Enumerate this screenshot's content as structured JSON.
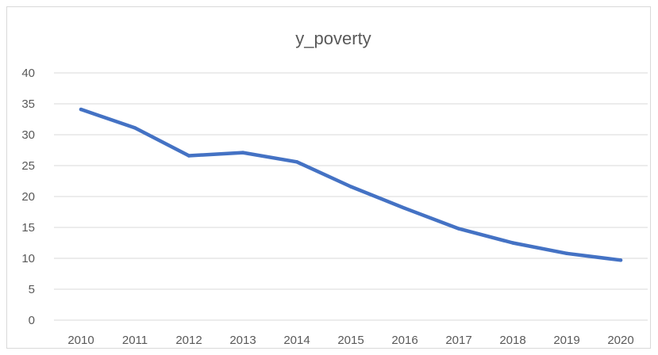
{
  "chart_data": {
    "type": "line",
    "title": "y_poverty",
    "xlabel": "",
    "ylabel": "",
    "categories": [
      "2010",
      "2011",
      "2012",
      "2013",
      "2014",
      "2015",
      "2016",
      "2017",
      "2018",
      "2019",
      "2020"
    ],
    "series": [
      {
        "values": [
          34.1,
          31.1,
          26.6,
          27.1,
          25.6,
          21.6,
          18.1,
          14.8,
          12.5,
          10.8,
          9.7
        ],
        "color": "#4472C4"
      }
    ],
    "ylim": [
      0,
      40
    ],
    "yticks": [
      "0",
      "5",
      "10",
      "15",
      "20",
      "25",
      "30",
      "35",
      "40"
    ],
    "grid": true,
    "legend": "none"
  }
}
